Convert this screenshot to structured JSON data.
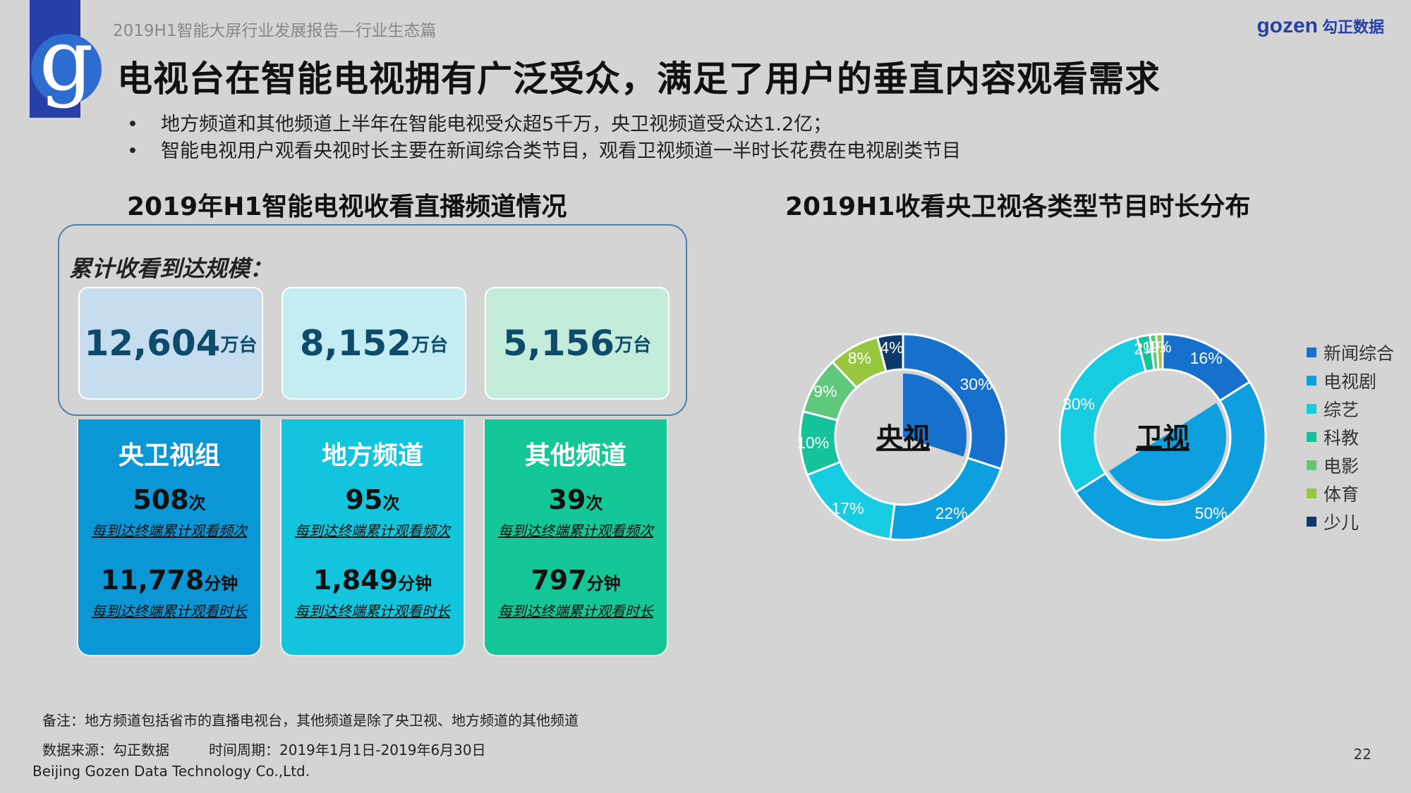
{
  "header": {
    "report_title": "2019H1智能大屏行业发展报告—行业生态篇",
    "brand_name": "gozen",
    "brand_cn": "勾正数据",
    "logo_letter": "g",
    "main_title": "电视台在智能电视拥有广泛受众，满足了用户的垂直内容观看需求",
    "bullets": [
      "地方频道和其他频道上半年在智能电视受众超5千万，央卫视频道受众达1.2亿；",
      "智能电视用户观看央视时长主要在新闻综合类节目，观看卫视频道一半时长花费在电视剧类节目"
    ]
  },
  "left_section": {
    "title": "2019年H1智能电视收看直播频道情况",
    "reach_label": "累计收看到达规模：",
    "reach": [
      {
        "value": "12,604",
        "unit": "万台",
        "color": "#c6dcef"
      },
      {
        "value": "8,152",
        "unit": "万台",
        "color": "#c4ecf3"
      },
      {
        "value": "5,156",
        "unit": "万台",
        "color": "#c3ecdb"
      }
    ],
    "groups": [
      {
        "title": "央卫视组",
        "color": "#0b97d6",
        "freq": "508",
        "freq_unit": "次",
        "freq_desc": "每到达终端累计观看频次",
        "dur": "11,778",
        "dur_unit": "分钟",
        "dur_desc": "每到达终端累计观看时长"
      },
      {
        "title": "地方频道",
        "color": "#12c5dc",
        "freq": "95",
        "freq_unit": "次",
        "freq_desc": "每到达终端累计观看频次",
        "dur": "1,849",
        "dur_unit": "分钟",
        "dur_desc": "每到达终端累计观看时长"
      },
      {
        "title": "其他频道",
        "color": "#13c896",
        "freq": "39",
        "freq_unit": "次",
        "freq_desc": "每到达终端累计观看频次",
        "dur": "797",
        "dur_unit": "分钟",
        "dur_desc": "每到达终端累计观看时长"
      }
    ]
  },
  "chart_data": {
    "type": "pie",
    "variant": "donut",
    "title": "2019H1收看央卫视各类型节目时长分布",
    "categories": [
      "新闻综合",
      "电视剧",
      "综艺",
      "科教",
      "电影",
      "体育",
      "少儿"
    ],
    "colors": [
      "#1670cc",
      "#0ea0de",
      "#17cce0",
      "#14c39a",
      "#5ec97a",
      "#98c73f",
      "#0d3a6b"
    ],
    "series": [
      {
        "name": "央视",
        "values": [
          30,
          22,
          17,
          10,
          9,
          8,
          4
        ],
        "labels": [
          "30%",
          "22%",
          "17%",
          "10%",
          "9%",
          "8%",
          "4%"
        ]
      },
      {
        "name": "卫视",
        "values": [
          16,
          50,
          30,
          2,
          1,
          1,
          0
        ],
        "labels": [
          "16%",
          "50%",
          "30%",
          "2%",
          "1%",
          "1%",
          ""
        ]
      }
    ],
    "legend_position": "right"
  },
  "footer": {
    "note": "备注：地方频道包括省市的直播电视台，其他频道是除了央卫视、地方频道的其他频道",
    "source": "数据来源：勾正数据",
    "period": "时间周期：2019年1月1日-2019年6月30日",
    "company": "Beijing Gozen Data Technology Co.,Ltd.",
    "page_number": "22"
  }
}
